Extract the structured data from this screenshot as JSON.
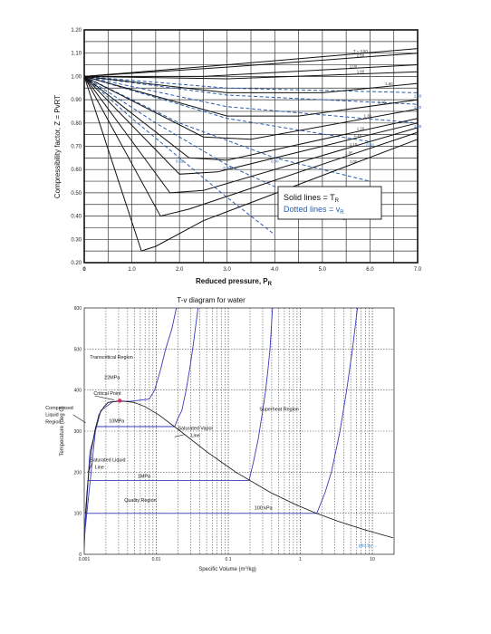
{
  "chart_data": [
    {
      "type": "line",
      "xlabel": "Reduced pressure, P",
      "xlabel_sub": "R",
      "ylabel": "Compressibility factor, Z = PvRT",
      "xlim": [
        0,
        7.0
      ],
      "ylim": [
        0.2,
        1.2
      ],
      "x_ticks": [
        {
          "v": 0,
          "label": "0"
        },
        {
          "v": 1,
          "label": "1.0"
        },
        {
          "v": 2,
          "label": "2.0"
        },
        {
          "v": 3,
          "label": "3.0"
        },
        {
          "v": 4,
          "label": "4.0"
        },
        {
          "v": 5,
          "label": "5.0"
        },
        {
          "v": 6,
          "label": "6.0"
        },
        {
          "v": 7,
          "label": "7.0"
        }
      ],
      "y_ticks": [
        {
          "v": 0.2,
          "label": "0.20"
        },
        {
          "v": 0.3,
          "label": "0.30"
        },
        {
          "v": 0.4,
          "label": "0.40"
        },
        {
          "v": 0.5,
          "label": "0.50"
        },
        {
          "v": 0.6,
          "label": "0.60"
        },
        {
          "v": 0.7,
          "label": "0.70"
        },
        {
          "v": 0.8,
          "label": "0.80"
        },
        {
          "v": 0.9,
          "label": "0.90"
        },
        {
          "v": 1.0,
          "label": "1.00"
        },
        {
          "v": 1.1,
          "label": "1.10"
        },
        {
          "v": 1.2,
          "label": "1.20"
        }
      ],
      "grid": true,
      "legend_lines": [
        "Solid lines = T",
        "Dotted lines = v"
      ],
      "legend_subs": [
        "R",
        "R"
      ],
      "legend_colors": [
        "#111111",
        "#2a5db0"
      ],
      "solid_series": [
        {
          "label": "T = 3.50",
          "points": [
            [
              0,
              1.0
            ],
            [
              3,
              1.05
            ],
            [
              7,
              1.12
            ]
          ]
        },
        {
          "label": "2.50",
          "points": [
            [
              0,
              1.0
            ],
            [
              3,
              1.04
            ],
            [
              7,
              1.1
            ]
          ]
        },
        {
          "label": "2.00",
          "points": [
            [
              0,
              1.0
            ],
            [
              2.5,
              1.0
            ],
            [
              7,
              1.05
            ]
          ]
        },
        {
          "label": "1.80",
          "points": [
            [
              0,
              1.0
            ],
            [
              3,
              0.99
            ],
            [
              7,
              1.02
            ]
          ]
        },
        {
          "label": "1.60",
          "points": [
            [
              0,
              1.0
            ],
            [
              3,
              0.93
            ],
            [
              5,
              0.93
            ],
            [
              7,
              0.97
            ]
          ]
        },
        {
          "label": "1.40",
          "points": [
            [
              0,
              1.0
            ],
            [
              3,
              0.83
            ],
            [
              4.5,
              0.83
            ],
            [
              7,
              0.9
            ]
          ]
        },
        {
          "label": "1.30",
          "points": [
            [
              0,
              1.0
            ],
            [
              2.5,
              0.74
            ],
            [
              3.5,
              0.73
            ],
            [
              7,
              0.86
            ]
          ]
        },
        {
          "label": "1.20",
          "points": [
            [
              0,
              1.0
            ],
            [
              2.2,
              0.65
            ],
            [
              3,
              0.64
            ],
            [
              7,
              0.82
            ]
          ]
        },
        {
          "label": "1.15",
          "points": [
            [
              0,
              1.0
            ],
            [
              2,
              0.58
            ],
            [
              2.8,
              0.59
            ],
            [
              7,
              0.8
            ]
          ]
        },
        {
          "label": "1.10",
          "points": [
            [
              0,
              1.0
            ],
            [
              1.8,
              0.5
            ],
            [
              2.5,
              0.51
            ],
            [
              7,
              0.78
            ]
          ]
        },
        {
          "label": "1.05",
          "points": [
            [
              0,
              1.0
            ],
            [
              1.6,
              0.4
            ],
            [
              2.2,
              0.43
            ],
            [
              7,
              0.76
            ]
          ]
        },
        {
          "label": "1.00",
          "points": [
            [
              0,
              1.0
            ],
            [
              1.2,
              0.25
            ],
            [
              1.5,
              0.27
            ],
            [
              2.5,
              0.38
            ],
            [
              7,
              0.73
            ]
          ]
        }
      ],
      "dotted_series": [
        {
          "label": "0.55",
          "points": [
            [
              0,
              1.0
            ],
            [
              1,
              0.82
            ],
            [
              2,
              0.65
            ],
            [
              3,
              0.48
            ],
            [
              4,
              0.32
            ]
          ]
        },
        {
          "label": "0.70",
          "points": [
            [
              0,
              1.0
            ],
            [
              1.5,
              0.8
            ],
            [
              3,
              0.62
            ],
            [
              4.5,
              0.48
            ],
            [
              5.5,
              0.38
            ]
          ]
        },
        {
          "label": "0.80",
          "points": [
            [
              0,
              1.0
            ],
            [
              2,
              0.8
            ],
            [
              4,
              0.65
            ],
            [
              6,
              0.55
            ]
          ]
        },
        {
          "label": "0.90",
          "points": [
            [
              0,
              1.0
            ],
            [
              3,
              0.82
            ],
            [
              6,
              0.72
            ]
          ]
        },
        {
          "label": "1.00",
          "points": [
            [
              0,
              1.0
            ],
            [
              3,
              0.87
            ],
            [
              7,
              0.8
            ]
          ]
        },
        {
          "label": "1.20",
          "points": [
            [
              0,
              1.0
            ],
            [
              3,
              0.92
            ],
            [
              7,
              0.88
            ]
          ]
        },
        {
          "label": "1.40",
          "points": [
            [
              0,
              1.0
            ],
            [
              3,
              0.95
            ],
            [
              7,
              0.93
            ]
          ]
        }
      ]
    },
    {
      "type": "line",
      "title": "T-v diagram for water",
      "xlabel": "Specific Volume (m",
      "xlabel_tail": "/kg)",
      "ylabel": "Temperature (deg C)",
      "xscale": "log",
      "xlim": [
        0.001,
        20
      ],
      "ylim": [
        0,
        600
      ],
      "x_ticks": [
        {
          "v": 0.001,
          "label": "0.001"
        },
        {
          "v": 0.01,
          "label": "0.01"
        },
        {
          "v": 0.1,
          "label": "0.1"
        },
        {
          "v": 1,
          "label": "1"
        },
        {
          "v": 10,
          "label": "10"
        }
      ],
      "y_ticks": [
        {
          "v": 0,
          "label": "0"
        },
        {
          "v": 100,
          "label": "100"
        },
        {
          "v": 200,
          "label": "200"
        },
        {
          "v": 300,
          "label": "300"
        },
        {
          "v": 400,
          "label": "400"
        },
        {
          "v": 500,
          "label": "500"
        },
        {
          "v": 600,
          "label": "600"
        }
      ],
      "grid": true,
      "dome": [
        [
          0.00104,
          100
        ],
        [
          0.00106,
          120
        ],
        [
          0.00109,
          150
        ],
        [
          0.00116,
          200
        ],
        [
          0.00125,
          250
        ],
        [
          0.0014,
          300
        ],
        [
          0.0016,
          340
        ],
        [
          0.00189,
          360
        ],
        [
          0.00215,
          370
        ],
        [
          0.00311,
          373.95
        ],
        [
          0.0049,
          370
        ],
        [
          0.0069,
          360
        ],
        [
          0.0108,
          340
        ],
        [
          0.0216,
          300
        ],
        [
          0.05,
          250
        ],
        [
          0.127,
          200
        ],
        [
          0.39,
          150
        ],
        [
          0.89,
          120
        ],
        [
          1.67,
          100
        ],
        [
          3.4,
          80
        ],
        [
          7.7,
          60
        ],
        [
          19.5,
          40
        ]
      ],
      "critical_point": [
        0.00311,
        373.95
      ],
      "isobars": [
        {
          "label": "100 kPa",
          "points": [
            [
              0.001,
              15
            ],
            [
              0.001043,
              99.6
            ],
            [
              1.694,
              99.6
            ],
            [
              2.2,
              150
            ],
            [
              2.7,
              200
            ],
            [
              3.1,
              250
            ],
            [
              3.55,
              300
            ],
            [
              4.4,
              400
            ],
            [
              5.3,
              500
            ],
            [
              6.2,
              600
            ]
          ]
        },
        {
          "label": "1MPa",
          "points": [
            [
              0.001,
              30
            ],
            [
              0.00113,
              179.9
            ],
            [
              0.194,
              179.9
            ],
            [
              0.22,
              220
            ],
            [
              0.26,
              280
            ],
            [
              0.3,
              350
            ],
            [
              0.33,
              400
            ],
            [
              0.355,
              450
            ],
            [
              0.38,
              500
            ],
            [
              0.41,
              600
            ]
          ]
        },
        {
          "label": "10MPa",
          "points": [
            [
              0.001,
              40
            ],
            [
              0.00145,
              311
            ],
            [
              0.018,
              311
            ],
            [
              0.0198,
              330
            ],
            [
              0.0226,
              350
            ],
            [
              0.026,
              400
            ],
            [
              0.029,
              450
            ],
            [
              0.032,
              500
            ],
            [
              0.038,
              600
            ]
          ]
        },
        {
          "label": "22MPa",
          "points": [
            [
              0.001,
              45
            ],
            [
              0.0012,
              250
            ],
            [
              0.0017,
              350
            ],
            [
              0.0025,
              372
            ],
            [
              0.0045,
              373
            ],
            [
              0.008,
              378
            ],
            [
              0.0095,
              400
            ],
            [
              0.0115,
              450
            ],
            [
              0.0135,
              500
            ],
            [
              0.0165,
              550
            ],
            [
              0.019,
              600
            ]
          ]
        }
      ],
      "annotations": [
        {
          "text": "Transcritical Region",
          "x": 0.0012,
          "y": 476
        },
        {
          "text": "22MPa",
          "x": 0.0019,
          "y": 427
        },
        {
          "text": "Critical Point",
          "x": 0.00135,
          "y": 388
        },
        {
          "text": "Compressed",
          "x": 0.00029,
          "y": 353
        },
        {
          "text": "Liquid",
          "x": 0.00029,
          "y": 336
        },
        {
          "text": "Region",
          "x": 0.00029,
          "y": 319
        },
        {
          "text": "10MPa",
          "x": 0.0022,
          "y": 321
        },
        {
          "text": "Superheat Region",
          "x": 0.27,
          "y": 350
        },
        {
          "text": "Saturated Vapor",
          "x": 0.02,
          "y": 303
        },
        {
          "text": "Line",
          "x": 0.03,
          "y": 286
        },
        {
          "text": "Saturated Liquid",
          "x": 0.0012,
          "y": 226
        },
        {
          "text": "Line",
          "x": 0.0014,
          "y": 209
        },
        {
          "text": "1MPa",
          "x": 0.0055,
          "y": 186
        },
        {
          "text": "Quality Region",
          "x": 0.0036,
          "y": 128
        },
        {
          "text": "100 kPa",
          "x": 0.23,
          "y": 109
        }
      ],
      "watermark": "plot by ..."
    }
  ]
}
